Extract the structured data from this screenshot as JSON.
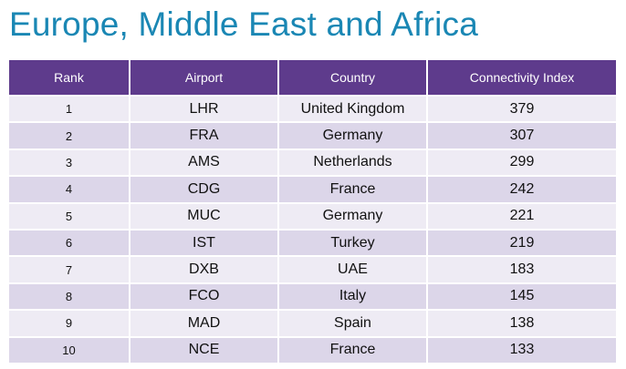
{
  "title": "Europe, Middle East and Africa",
  "table": {
    "headers": {
      "rank": "Rank",
      "airport": "Airport",
      "country": "Country",
      "index": "Connectivity Index"
    },
    "rows": [
      {
        "rank": "1",
        "airport": "LHR",
        "country": "United Kingdom",
        "index": "379"
      },
      {
        "rank": "2",
        "airport": "FRA",
        "country": "Germany",
        "index": "307"
      },
      {
        "rank": "3",
        "airport": "AMS",
        "country": "Netherlands",
        "index": "299"
      },
      {
        "rank": "4",
        "airport": "CDG",
        "country": "France",
        "index": "242"
      },
      {
        "rank": "5",
        "airport": "MUC",
        "country": "Germany",
        "index": "221"
      },
      {
        "rank": "6",
        "airport": "IST",
        "country": "Turkey",
        "index": "219"
      },
      {
        "rank": "7",
        "airport": "DXB",
        "country": "UAE",
        "index": "183"
      },
      {
        "rank": "8",
        "airport": "FCO",
        "country": "Italy",
        "index": "145"
      },
      {
        "rank": "9",
        "airport": "MAD",
        "country": "Spain",
        "index": "138"
      },
      {
        "rank": "10",
        "airport": "NCE",
        "country": "France",
        "index": "133"
      }
    ]
  },
  "colors": {
    "title": "#1a87b4",
    "header_bg": "#5e3b8c",
    "row_light": "#eeebf4",
    "row_dark": "#dcd6e9"
  }
}
